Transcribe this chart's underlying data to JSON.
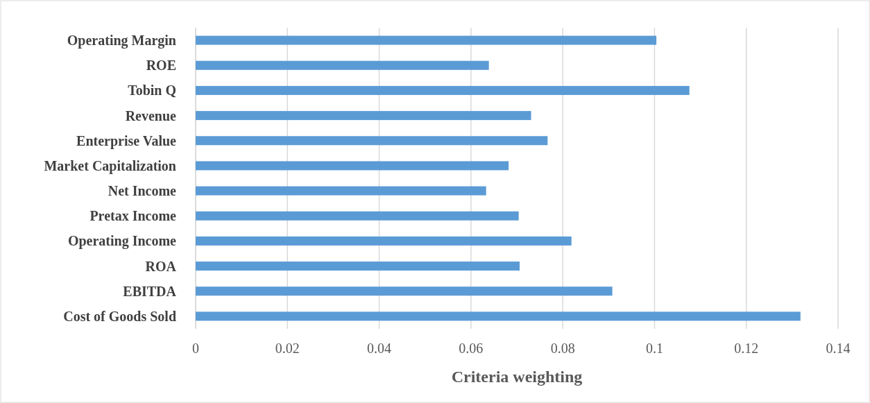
{
  "chart_data": {
    "type": "bar",
    "orientation": "horizontal",
    "xlabel": "Criteria weighting",
    "categories": [
      "Operating Margin",
      "ROE",
      "Tobin Q",
      "Revenue",
      "Enterprise Value",
      "Market Capitalization",
      "Net Income",
      "Pretax Income",
      "Operating Income",
      "ROA",
      "EBITDA",
      "Cost of Goods Sold"
    ],
    "values": [
      0.1004,
      0.0639,
      0.1076,
      0.0731,
      0.0767,
      0.0682,
      0.0633,
      0.0704,
      0.0819,
      0.0706,
      0.0908,
      0.1318
    ],
    "color": "#5b9bd5",
    "xlim": [
      0,
      0.14
    ],
    "xticks": [
      0,
      0.02,
      0.04,
      0.06,
      0.08,
      0.1,
      0.12,
      0.14
    ],
    "grid": "x"
  }
}
